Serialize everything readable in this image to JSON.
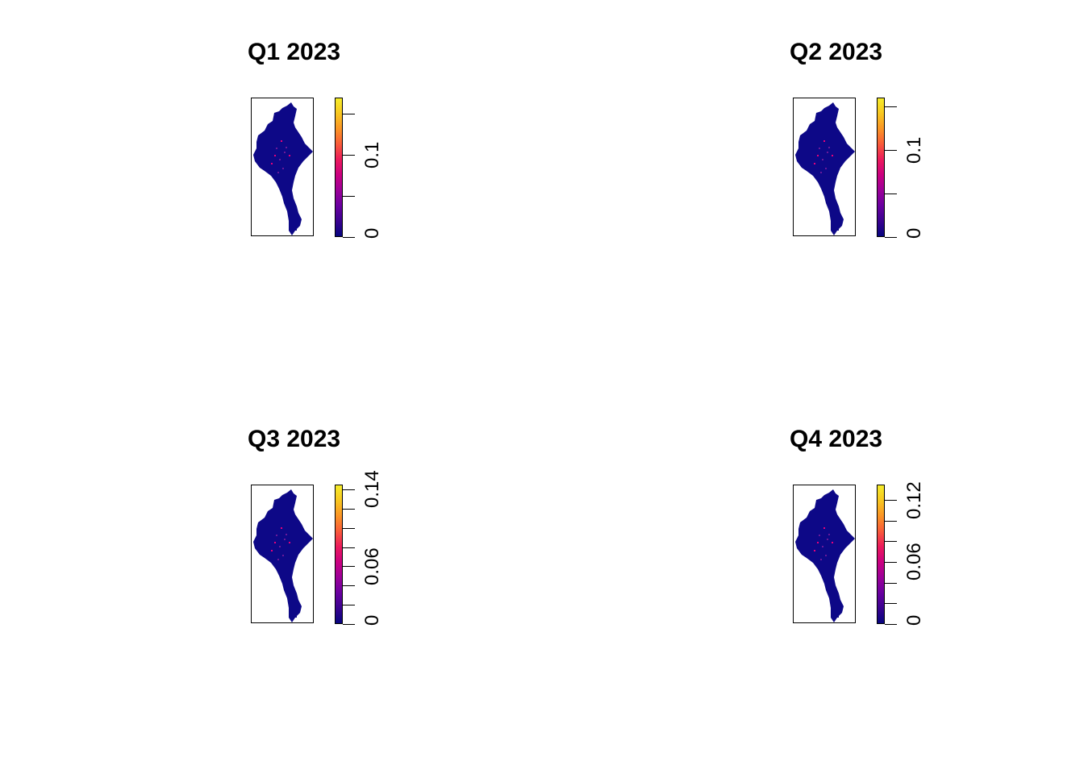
{
  "colors": {
    "low": "#0d0887",
    "mid": "#e6007a",
    "high": "#f9e721",
    "background": "#ffffff",
    "frame": "#000000"
  },
  "legend_palette": [
    "#06047f",
    "#3a0290",
    "#6a00a0",
    "#9c0098",
    "#cb0080",
    "#ec1a5c",
    "#f95a3a",
    "#fb9425",
    "#f8c620",
    "#f5ec2a"
  ],
  "chart_data": [
    {
      "type": "heatmap",
      "title": "Q1 2023",
      "legend": {
        "min": 0,
        "max": 0.17,
        "ticks": [
          0,
          0.05,
          0.1,
          0.15
        ],
        "tick_labels": [
          "0",
          "",
          "0.1",
          ""
        ]
      }
    },
    {
      "type": "heatmap",
      "title": "Q2 2023",
      "legend": {
        "min": 0,
        "max": 0.16,
        "ticks": [
          0,
          0.05,
          0.1,
          0.15
        ],
        "tick_labels": [
          "0",
          "",
          "0.1",
          ""
        ]
      }
    },
    {
      "type": "heatmap",
      "title": "Q3 2023",
      "legend": {
        "min": 0,
        "max": 0.145,
        "ticks": [
          0,
          0.02,
          0.04,
          0.06,
          0.08,
          0.1,
          0.12,
          0.14
        ],
        "tick_labels": [
          "0",
          "",
          "",
          "0.06",
          "",
          "",
          "",
          "0.14"
        ]
      }
    },
    {
      "type": "heatmap",
      "title": "Q4 2023",
      "legend": {
        "min": 0,
        "max": 0.135,
        "ticks": [
          0,
          0.02,
          0.04,
          0.06,
          0.08,
          0.1,
          0.12
        ],
        "tick_labels": [
          "0",
          "",
          "",
          "0.06",
          "",
          "",
          "0.12"
        ]
      }
    }
  ]
}
